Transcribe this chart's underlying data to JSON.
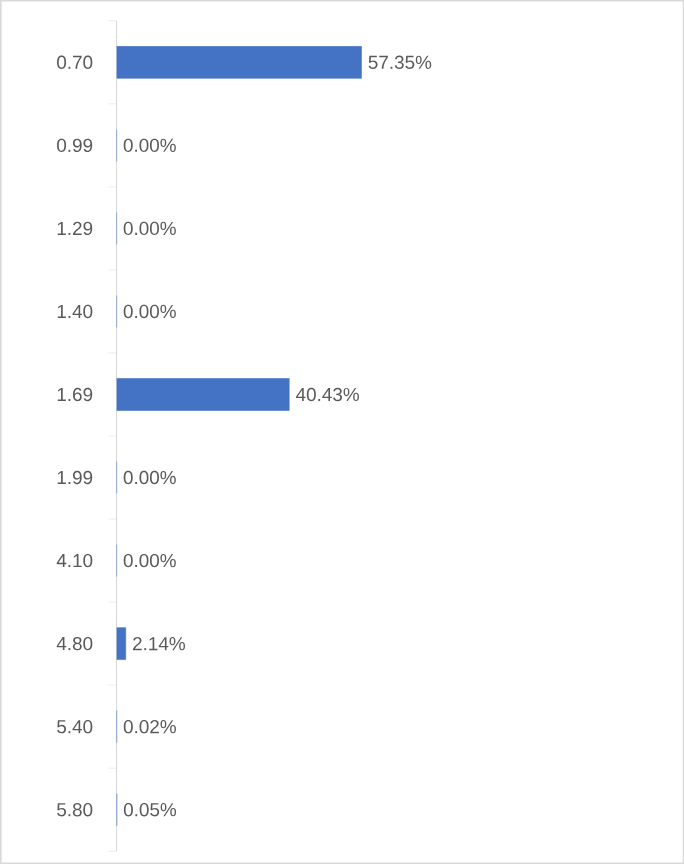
{
  "chart_data": {
    "type": "bar",
    "orientation": "horizontal",
    "categories": [
      "0.70",
      "0.99",
      "1.29",
      "1.40",
      "1.69",
      "1.99",
      "4.10",
      "4.80",
      "5.40",
      "5.80"
    ],
    "values": [
      57.35,
      0.0,
      0.0,
      0.0,
      40.43,
      0.0,
      0.0,
      2.14,
      0.02,
      0.05
    ],
    "value_labels": [
      "57.35%",
      "0.00%",
      "0.00%",
      "0.00%",
      "40.43%",
      "0.00%",
      "0.00%",
      "2.14%",
      "0.02%",
      "0.05%"
    ],
    "color": "#4472c4"
  }
}
